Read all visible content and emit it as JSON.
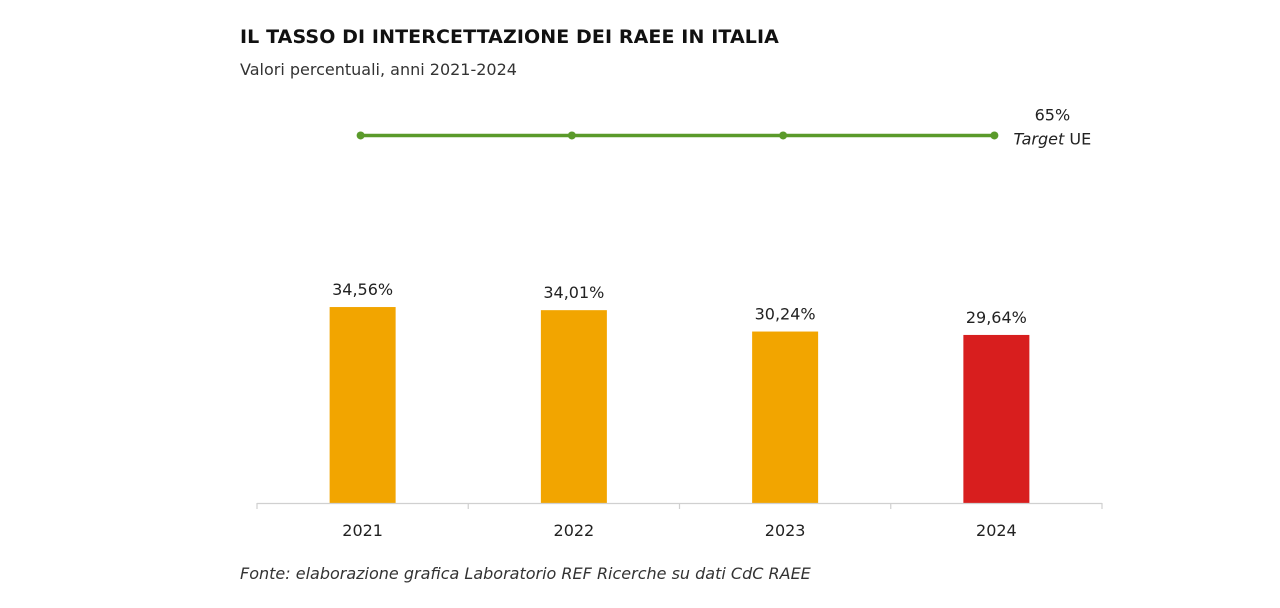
{
  "header": {
    "title": "IL TASSO DI INTERCETTAZIONE DEI RAEE IN ITALIA",
    "subtitle": "Valori percentuali, anni 2021-2024"
  },
  "footer": {
    "source": "Fonte: elaborazione grafica Laboratorio REF Ricerche su dati CdC RAEE"
  },
  "chart_data": {
    "type": "bar",
    "title": "IL TASSO DI INTERCETTAZIONE DEI RAEE IN ITALIA",
    "subtitle": "Valori percentuali, anni 2021-2024",
    "xlabel": "",
    "ylabel": "",
    "categories": [
      "2021",
      "2022",
      "2023",
      "2024"
    ],
    "values": [
      34.56,
      34.01,
      30.24,
      29.64
    ],
    "value_labels": [
      "34,56%",
      "34,01%",
      "30,24%",
      "29,64%"
    ],
    "bar_colors": [
      "#F2A500",
      "#F2A500",
      "#F2A500",
      "#D81E1E"
    ],
    "ylim": [
      0,
      70
    ],
    "grid": false,
    "target_line": {
      "name": "Target UE",
      "value": 65,
      "value_label": "65%",
      "label_prefix": "Target",
      "label_suffix": "UE",
      "color": "#5A9A2A",
      "points": [
        65,
        65,
        65,
        65
      ]
    },
    "axis_color": "#D0D0D0"
  }
}
